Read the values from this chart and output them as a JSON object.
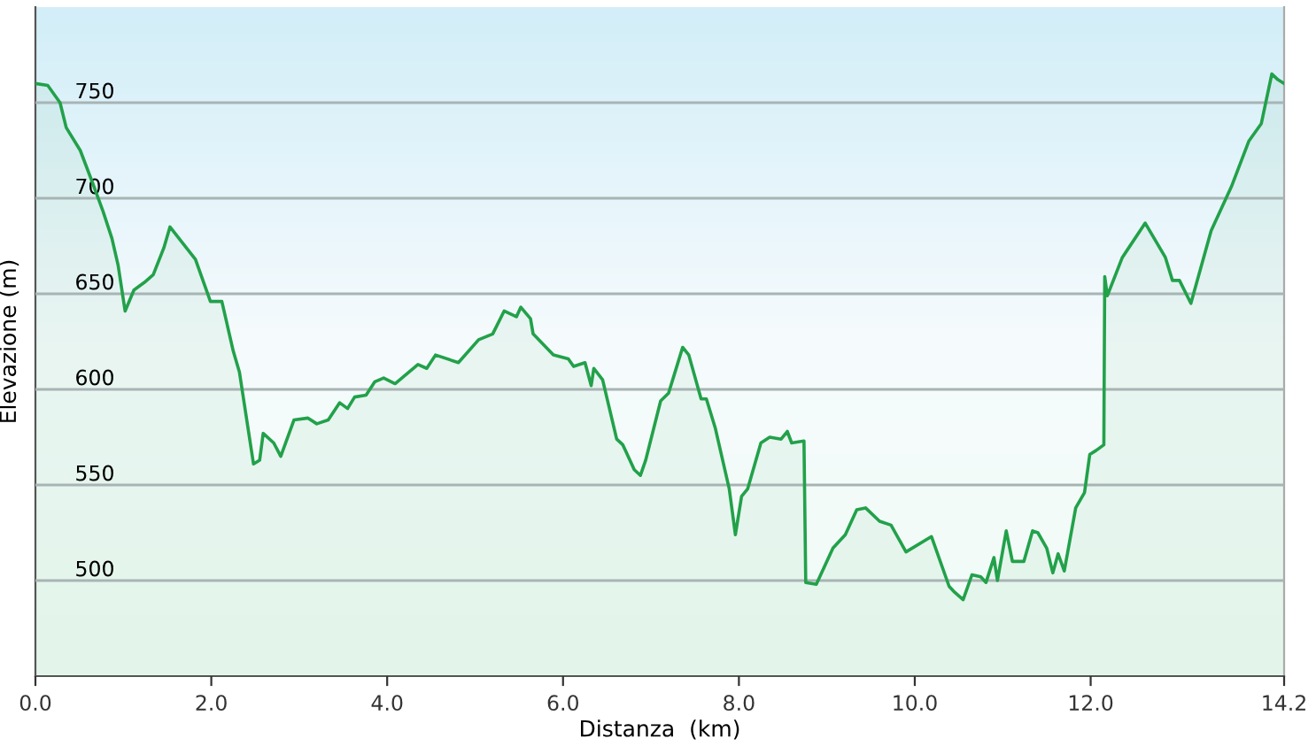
{
  "chart_data": {
    "type": "area",
    "xlabel": "Distanza  (km)",
    "ylabel": "Elevazione (m)",
    "xlim": [
      0,
      14.2
    ],
    "ylim": [
      450,
      800
    ],
    "xticks": [
      {
        "value": 0,
        "label": "0.0"
      },
      {
        "value": 2,
        "label": "2.0"
      },
      {
        "value": 4,
        "label": "4.0"
      },
      {
        "value": 6,
        "label": "6.0"
      },
      {
        "value": 8,
        "label": "8.0"
      },
      {
        "value": 10,
        "label": "10.0"
      },
      {
        "value": 12,
        "label": "12.0"
      },
      {
        "value": 14.2,
        "label": "14.2"
      }
    ],
    "yticks": [
      500,
      550,
      600,
      650,
      700,
      750
    ],
    "grid": "y",
    "legend": false,
    "series": [
      {
        "color": "#22a14a",
        "x": [
          0.0,
          0.14,
          0.28,
          0.35,
          0.51,
          0.65,
          0.77,
          0.87,
          0.94,
          1.02,
          1.12,
          1.24,
          1.34,
          1.46,
          1.53,
          1.82,
          1.99,
          2.12,
          2.25,
          2.32,
          2.48,
          2.55,
          2.59,
          2.71,
          2.79,
          2.94,
          3.1,
          3.2,
          3.33,
          3.46,
          3.55,
          3.63,
          3.76,
          3.86,
          3.96,
          4.09,
          4.35,
          4.45,
          4.55,
          4.81,
          5.04,
          5.2,
          5.33,
          5.47,
          5.52,
          5.63,
          5.66,
          5.89,
          6.06,
          6.12,
          6.25,
          6.32,
          6.35,
          6.45,
          6.61,
          6.68,
          6.81,
          6.88,
          6.94,
          7.11,
          7.2,
          7.36,
          7.43,
          7.57,
          7.63,
          7.73,
          7.89,
          7.96,
          8.03,
          8.1,
          8.25,
          8.35,
          8.48,
          8.55,
          8.6,
          8.74,
          8.76,
          8.88,
          9.07,
          9.21,
          9.34,
          9.44,
          9.6,
          9.73,
          9.9,
          10.19,
          10.39,
          10.45,
          10.55,
          10.65,
          10.75,
          10.81,
          10.9,
          10.94,
          11.04,
          11.11,
          11.24,
          11.34,
          11.4,
          11.5,
          11.57,
          11.63,
          11.7,
          11.83,
          11.93,
          11.99,
          12.06,
          12.15,
          12.16,
          12.19,
          12.36,
          12.62,
          12.85,
          12.93,
          13.01,
          13.14,
          13.37,
          13.6,
          13.8,
          13.94,
          14.06,
          14.13,
          14.2
        ],
        "values": [
          760,
          759,
          750,
          737,
          725,
          708,
          693,
          679,
          665,
          641,
          652,
          656,
          660,
          674,
          685,
          668,
          646,
          646,
          620,
          609,
          561,
          563,
          577,
          572,
          565,
          584,
          585,
          582,
          584,
          593,
          590,
          596,
          597,
          604,
          606,
          603,
          613,
          611,
          618,
          614,
          626,
          629,
          641,
          638,
          643,
          637,
          629,
          618,
          616,
          612,
          614,
          602,
          611,
          605,
          574,
          571,
          558,
          555,
          563,
          594,
          598,
          622,
          618,
          595,
          595,
          580,
          548,
          524,
          544,
          548,
          572,
          575,
          574,
          578,
          572,
          573,
          499,
          498,
          517,
          524,
          537,
          538,
          531,
          529,
          515,
          523,
          497,
          494,
          490,
          503,
          502,
          499,
          512,
          500,
          526,
          510,
          510,
          526,
          525,
          517,
          504,
          514,
          505,
          538,
          546,
          566,
          568,
          571,
          659,
          649,
          669,
          687,
          669,
          657,
          657,
          645,
          683,
          706,
          730,
          739,
          765,
          762,
          760
        ]
      }
    ]
  }
}
